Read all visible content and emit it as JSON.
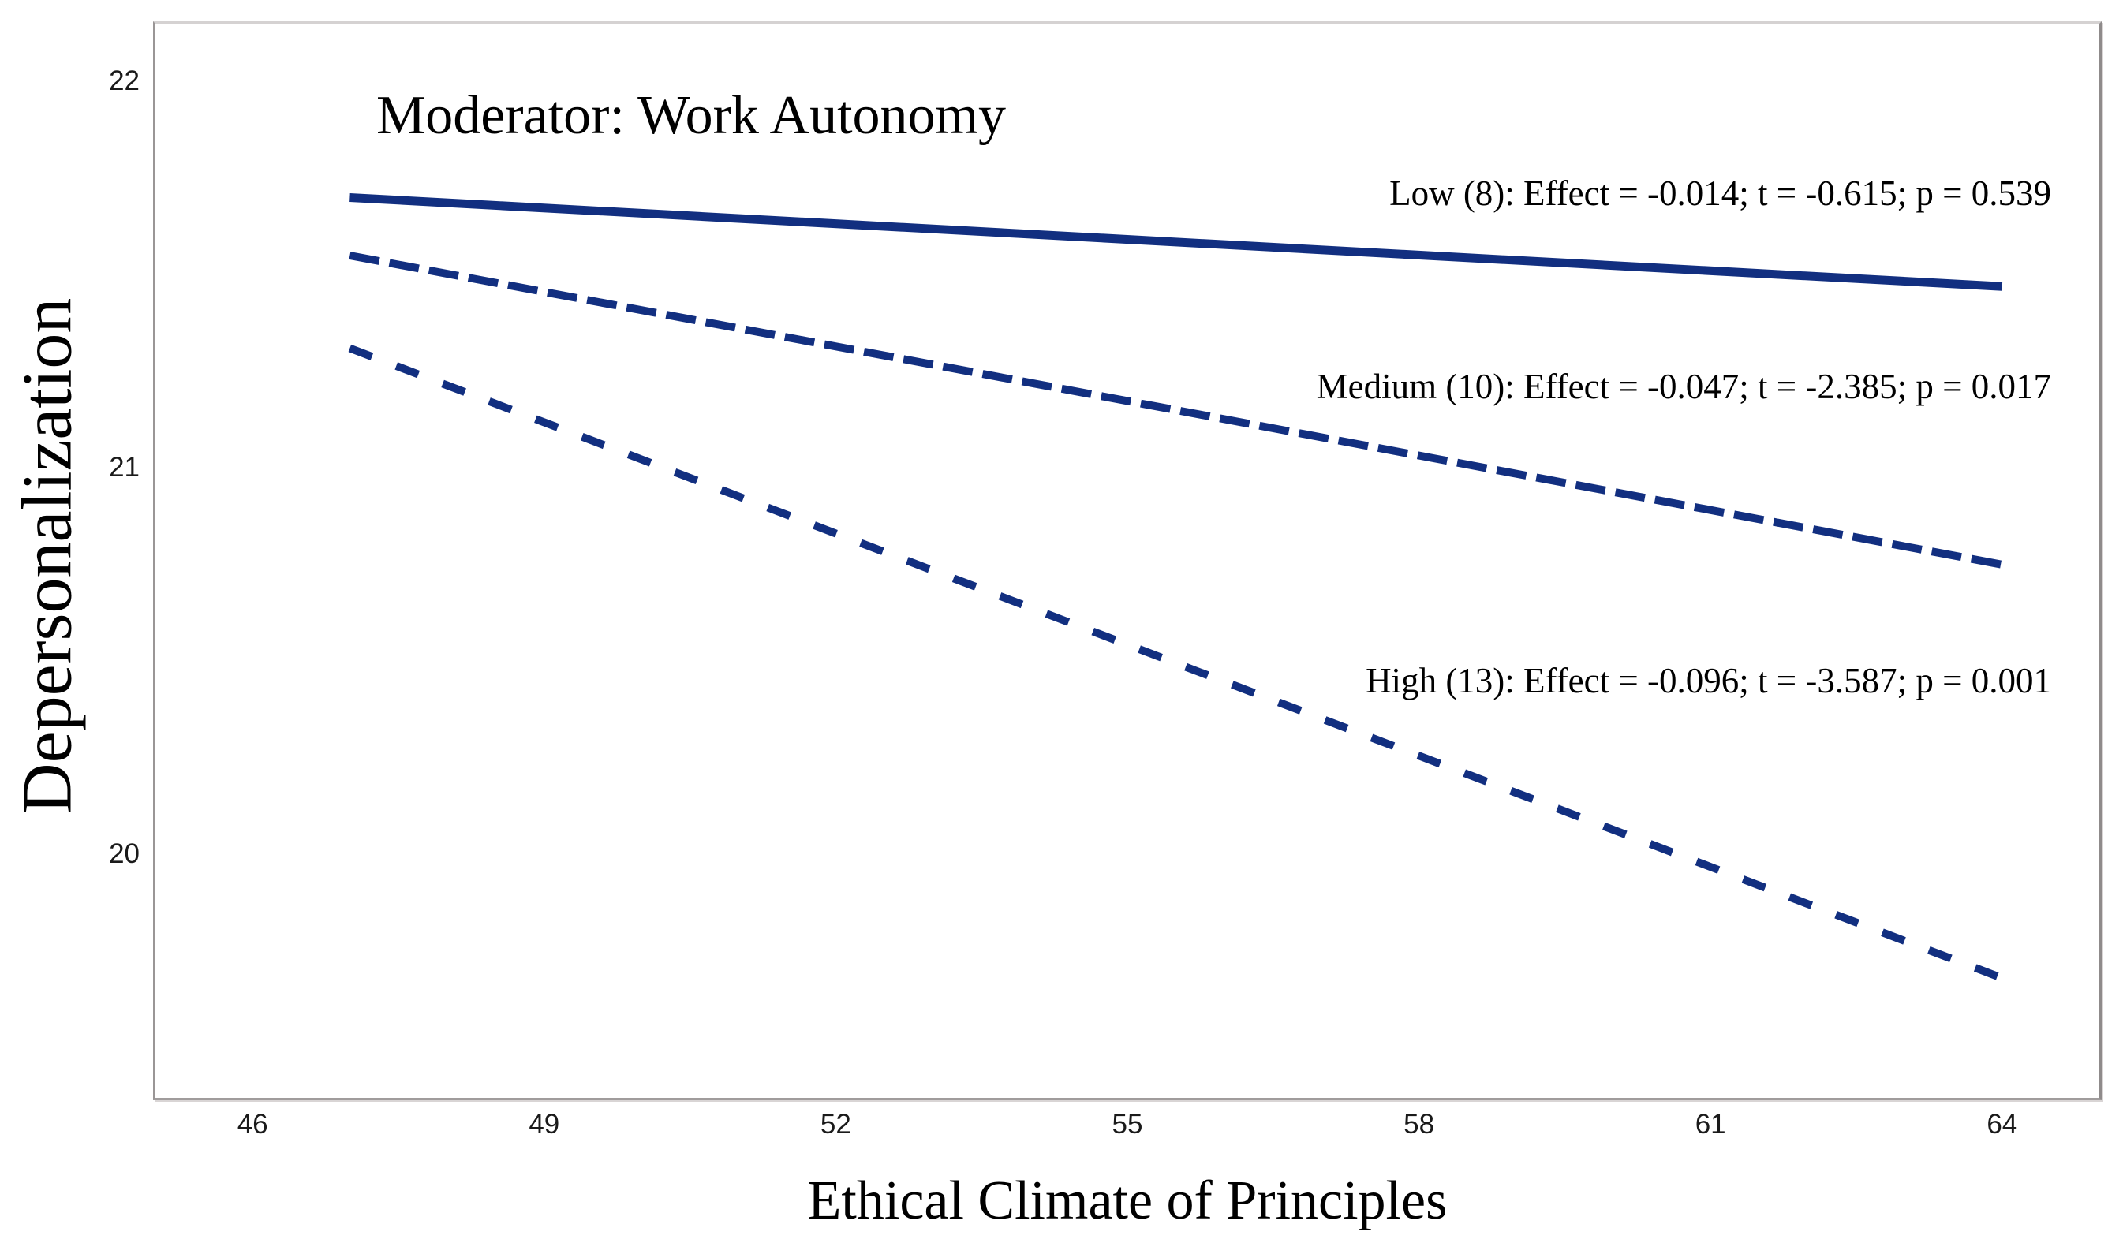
{
  "chart_data": {
    "type": "line",
    "title": "Moderator: Work Autonomy",
    "xlabel": "Ethical Climate of Principles",
    "ylabel": "Depersonalization",
    "xlim": [
      45,
      65
    ],
    "ylim": [
      19.37,
      22.15
    ],
    "x_ticks": [
      46,
      49,
      52,
      55,
      58,
      61,
      64
    ],
    "y_ticks": [
      22,
      21,
      20
    ],
    "grid": false,
    "legend_position": "inline-annotations-right",
    "line_color": "#122f80",
    "series": [
      {
        "name": "Low",
        "moderator_value": 8,
        "style": "solid",
        "x": [
          47,
          64
        ],
        "y": [
          21.7,
          21.47
        ],
        "effect": -0.014,
        "t": -0.615,
        "p": 0.539,
        "annotation": "Low (8): Effect = -0.014; t = -0.615; p = 0.539"
      },
      {
        "name": "Medium",
        "moderator_value": 10,
        "style": "dashed",
        "x": [
          47,
          64
        ],
        "y": [
          21.55,
          20.75
        ],
        "effect": -0.047,
        "t": -2.385,
        "p": 0.017,
        "annotation": "Medium (10): Effect = -0.047; t = -2.385; p = 0.017"
      },
      {
        "name": "High",
        "moderator_value": 13,
        "style": "dashed-sparse",
        "x": [
          47,
          64
        ],
        "y": [
          21.31,
          19.68
        ],
        "effect": -0.096,
        "t": -3.587,
        "p": 0.001,
        "annotation": "High (13): Effect = -0.096; t = -3.587; p = 0.001"
      }
    ]
  }
}
